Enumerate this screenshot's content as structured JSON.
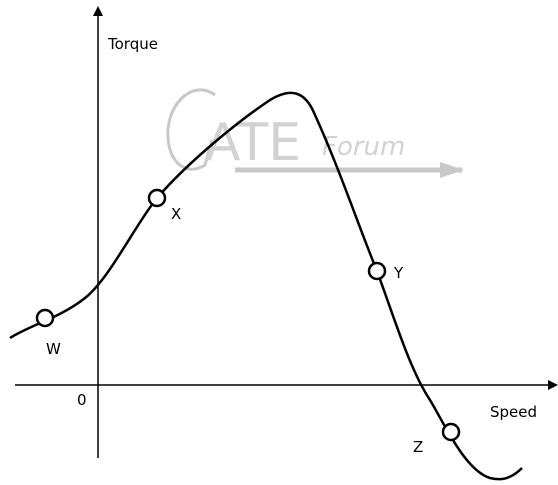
{
  "axes": {
    "y_label": "Torque",
    "x_label": "Speed",
    "origin": "0"
  },
  "points": [
    {
      "label": "W"
    },
    {
      "label": "X"
    },
    {
      "label": "Y"
    },
    {
      "label": "Z"
    }
  ],
  "watermark": {
    "main": "ATE",
    "sub": "Forum"
  }
}
